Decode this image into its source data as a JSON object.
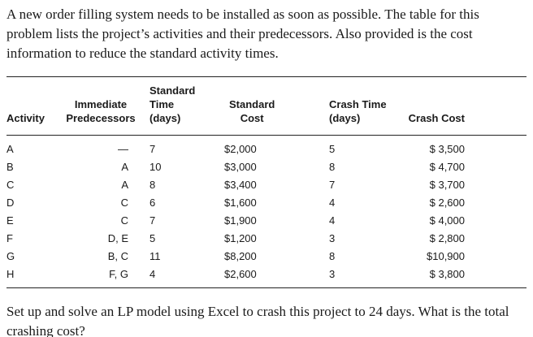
{
  "intro": "A new order filling system needs to be installed as soon as possible. The table for this problem lists the project’s activities and their predecessors. Also provided is the cost information to reduce the standard activity times.",
  "table": {
    "headers": {
      "activity": "Activity",
      "predecessors_l1": "Immediate",
      "predecessors_l2": "Predecessors",
      "standard_time_l1": "Standard Time",
      "standard_time_l2": "(days)",
      "standard_cost_l1": "Standard",
      "standard_cost_l2": "Cost",
      "crash_time_l1": "Crash Time",
      "crash_time_l2": "(days)",
      "crash_cost": "Crash Cost"
    },
    "rows": [
      {
        "activity": "A",
        "pred": "—",
        "std_time": "7",
        "std_cost": "$2,000",
        "crash_time": "5",
        "crash_cost": "$ 3,500"
      },
      {
        "activity": "B",
        "pred": "A",
        "std_time": "10",
        "std_cost": "$3,000",
        "crash_time": "8",
        "crash_cost": "$ 4,700"
      },
      {
        "activity": "C",
        "pred": "A",
        "std_time": "8",
        "std_cost": "$3,400",
        "crash_time": "7",
        "crash_cost": "$ 3,700"
      },
      {
        "activity": "D",
        "pred": "C",
        "std_time": "6",
        "std_cost": "$1,600",
        "crash_time": "4",
        "crash_cost": "$ 2,600"
      },
      {
        "activity": "E",
        "pred": "C",
        "std_time": "7",
        "std_cost": "$1,900",
        "crash_time": "4",
        "crash_cost": "$ 4,000"
      },
      {
        "activity": "F",
        "pred": "D, E",
        "std_time": "5",
        "std_cost": "$1,200",
        "crash_time": "3",
        "crash_cost": "$ 2,800"
      },
      {
        "activity": "G",
        "pred": "B, C",
        "std_time": "11",
        "std_cost": "$8,200",
        "crash_time": "8",
        "crash_cost": "$10,900"
      },
      {
        "activity": "H",
        "pred": "F, G",
        "std_time": "4",
        "std_cost": "$2,600",
        "crash_time": "3",
        "crash_cost": "$ 3,800"
      }
    ]
  },
  "question": "Set up and solve an LP model using Excel to crash this project to 24 days. What is the total crashing cost?"
}
